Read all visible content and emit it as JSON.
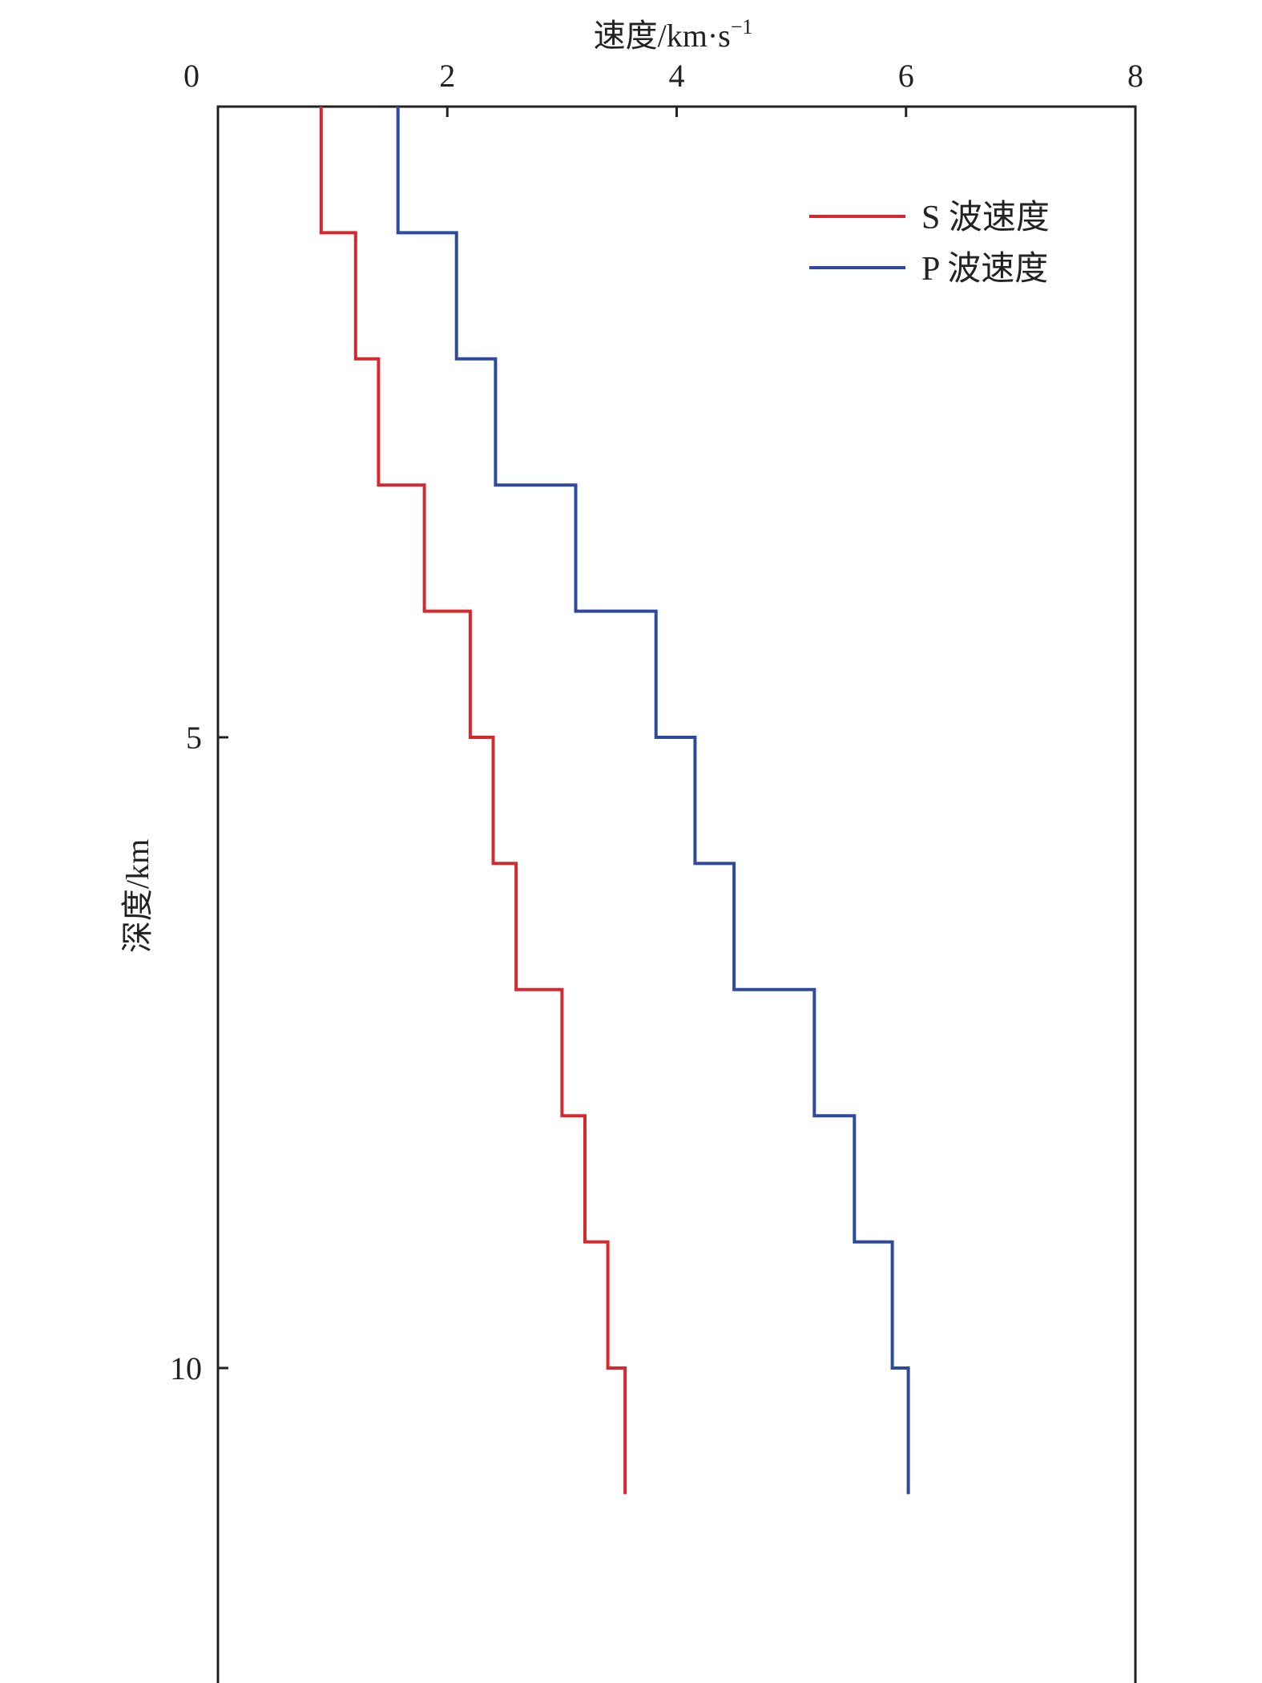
{
  "chart_data": {
    "type": "line",
    "xlabel": "速度/km·s",
    "xlabel_sup": "−1",
    "ylabel": "深度/km",
    "xlim": [
      0,
      8
    ],
    "ylim": [
      0,
      11.5
    ],
    "y_inverted": true,
    "x_axis_position": "top",
    "x_ticks": [
      0,
      2,
      4,
      6,
      8
    ],
    "y_ticks": [
      5,
      10
    ],
    "grid": false,
    "legend_position": "top-right",
    "series": [
      {
        "name": "S 波速度",
        "color": "#d42a2f",
        "step": true,
        "depth_breaks": [
          0,
          1,
          2,
          3,
          4,
          5,
          6,
          7,
          8,
          9,
          10,
          11
        ],
        "velocities": [
          0.9,
          1.2,
          1.4,
          1.8,
          2.2,
          2.4,
          2.6,
          3.0,
          3.2,
          3.4,
          3.55
        ]
      },
      {
        "name": "P 波速度",
        "color": "#2e4a9e",
        "step": true,
        "depth_breaks": [
          0,
          1,
          2,
          3,
          4,
          5,
          6,
          7,
          8,
          9,
          10,
          11
        ],
        "velocities": [
          1.57,
          2.08,
          2.42,
          3.12,
          3.82,
          4.16,
          4.5,
          5.2,
          5.55,
          5.88,
          6.02
        ]
      }
    ]
  }
}
